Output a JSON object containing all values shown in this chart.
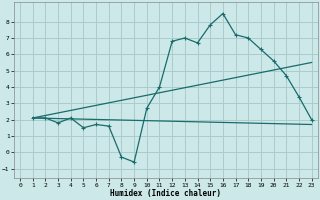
{
  "xlabel": "Humidex (Indice chaleur)",
  "bg_color": "#cce8e8",
  "grid_color": "#aacccc",
  "line_color": "#1a6b6b",
  "xlim": [
    -0.5,
    23.5
  ],
  "ylim": [
    -1.6,
    9.2
  ],
  "xticks": [
    0,
    1,
    2,
    3,
    4,
    5,
    6,
    7,
    8,
    9,
    10,
    11,
    12,
    13,
    14,
    15,
    16,
    17,
    18,
    19,
    20,
    21,
    22,
    23
  ],
  "yticks": [
    -1,
    0,
    1,
    2,
    3,
    4,
    5,
    6,
    7,
    8
  ],
  "line1_x": [
    1,
    2,
    3,
    4,
    5,
    6,
    7,
    8,
    9,
    10,
    11,
    12,
    13,
    14,
    15,
    16,
    17,
    18,
    19,
    20,
    21,
    22,
    23
  ],
  "line1_y": [
    2.1,
    2.1,
    1.8,
    2.1,
    1.5,
    1.7,
    1.6,
    -0.3,
    -0.6,
    2.7,
    4.0,
    6.8,
    7.0,
    6.7,
    7.8,
    8.5,
    7.2,
    7.0,
    6.3,
    5.6,
    4.7,
    3.4,
    2.0
  ],
  "line2_x": [
    1,
    23
  ],
  "line2_y": [
    2.1,
    5.5
  ],
  "line3_x": [
    1,
    23
  ],
  "line3_y": [
    2.1,
    1.7
  ]
}
